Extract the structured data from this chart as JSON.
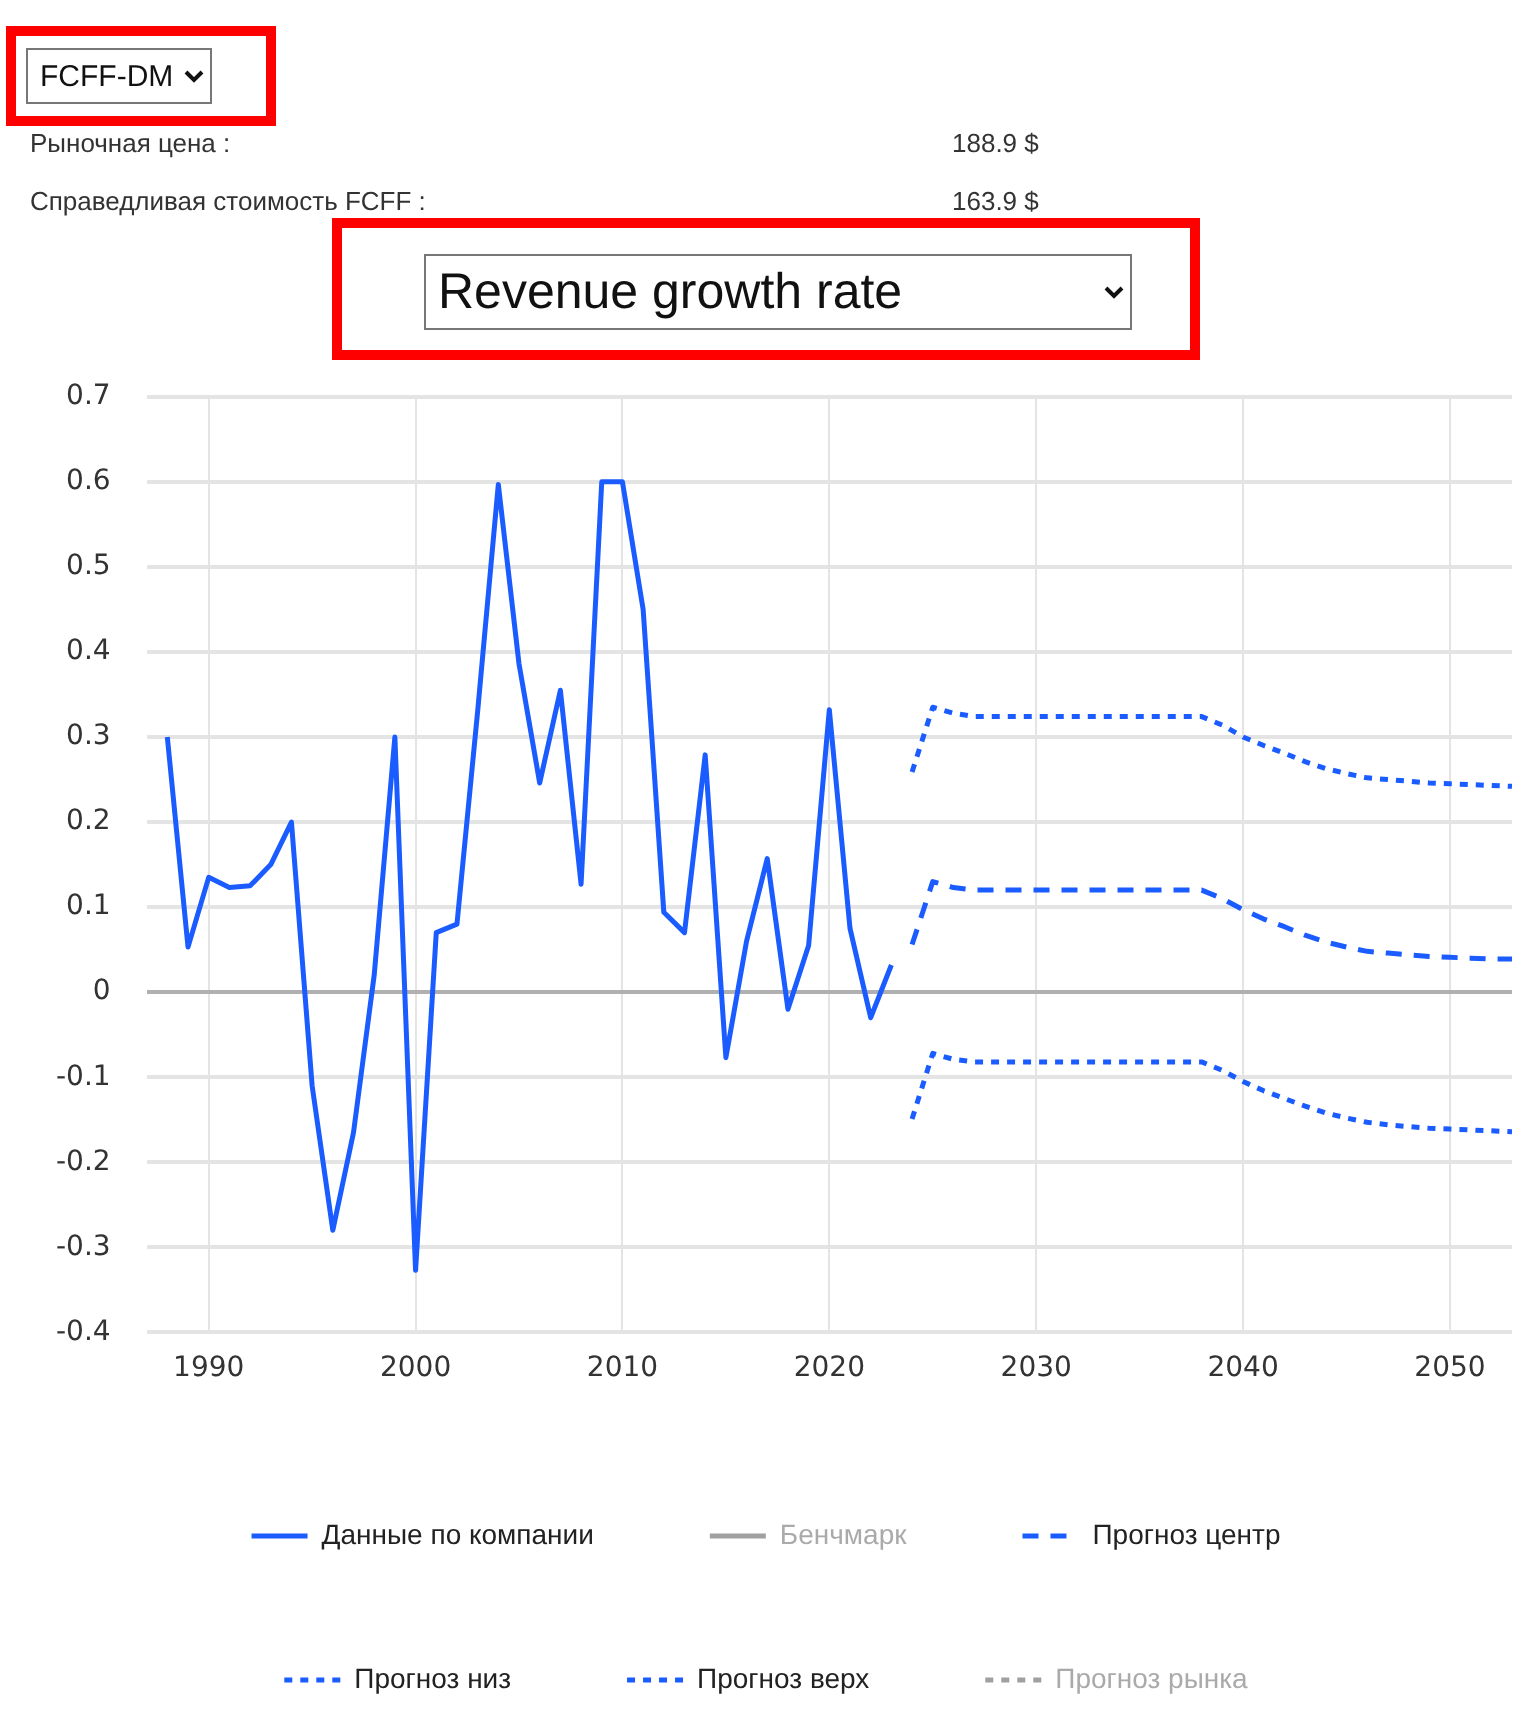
{
  "chart_data": {
    "type": "line",
    "title": "Revenue growth rate",
    "annotations": [
      "FCFF-DM",
      "Рыночная цена :",
      "188.9 $",
      "Справедливая стоимость FCFF :",
      "163.9 $"
    ],
    "xlim": [
      1987,
      2053
    ],
    "xticks": [
      1990,
      2000,
      2010,
      2020,
      2030,
      2040,
      2050
    ],
    "ylim": [
      -0.4,
      0.7
    ],
    "yticks": [
      -0.4,
      -0.3,
      -0.2,
      -0.1,
      0,
      0.1,
      0.2,
      0.3,
      0.4,
      0.5,
      0.6,
      0.7
    ],
    "grid": true,
    "legend": "bottom",
    "marker": "none",
    "series": [
      {
        "name": "Данные по компании",
        "color": "#1a5cff",
        "line_style": "solid",
        "x": [
          1988,
          1989,
          1990,
          1991,
          1992,
          1993,
          1994,
          1995,
          1996,
          1997,
          1998,
          1999,
          2000,
          2001,
          2002,
          2003,
          2004,
          2005,
          2006,
          2007,
          2008,
          2009,
          2010,
          2011,
          2012,
          2013,
          2014,
          2015,
          2016,
          2017,
          2018,
          2019,
          2020,
          2021,
          2022,
          2023
        ],
        "values": [
          0.3,
          0.053,
          0.135,
          0.123,
          0.125,
          0.15,
          0.2,
          -0.11,
          -0.28,
          -0.165,
          0.02,
          0.3,
          -0.327,
          0.07,
          0.08,
          0.33,
          0.597,
          0.386,
          0.246,
          0.355,
          0.127,
          0.6,
          0.6,
          0.45,
          0.094,
          0.07,
          0.279,
          -0.077,
          0.06,
          0.157,
          -0.02,
          0.055,
          0.332,
          0.075,
          -0.03,
          0.032
        ]
      },
      {
        "name": "Бенчмарк",
        "color": "#a0a0a0",
        "line_style": "solid"
      },
      {
        "name": "Прогноз центр",
        "color": "#1a5cff",
        "line_style": "dashed",
        "x": [
          2024,
          2025,
          2026,
          2027,
          2028,
          2029,
          2030,
          2031,
          2032,
          2033,
          2034,
          2035,
          2036,
          2037,
          2038,
          2039,
          2040,
          2041,
          2042,
          2043,
          2044,
          2045,
          2046,
          2047,
          2048,
          2049,
          2050,
          2051,
          2052,
          2053
        ],
        "values": [
          0.056,
          0.13,
          0.123,
          0.12,
          0.12,
          0.12,
          0.12,
          0.12,
          0.12,
          0.12,
          0.12,
          0.12,
          0.12,
          0.12,
          0.12,
          0.11,
          0.097,
          0.086,
          0.077,
          0.067,
          0.059,
          0.053,
          0.048,
          0.046,
          0.044,
          0.042,
          0.041,
          0.04,
          0.039,
          0.039
        ]
      },
      {
        "name": "Прогноз низ",
        "color": "#1a5cff",
        "line_style": "dotted",
        "x": [
          2024,
          2025,
          2026,
          2027,
          2028,
          2029,
          2030,
          2031,
          2032,
          2033,
          2034,
          2035,
          2036,
          2037,
          2038,
          2039,
          2040,
          2041,
          2042,
          2043,
          2044,
          2045,
          2046,
          2047,
          2048,
          2049,
          2050,
          2051,
          2052,
          2053
        ],
        "values": [
          -0.149,
          -0.072,
          -0.079,
          -0.082,
          -0.082,
          -0.082,
          -0.082,
          -0.082,
          -0.082,
          -0.082,
          -0.082,
          -0.082,
          -0.082,
          -0.082,
          -0.082,
          -0.092,
          -0.105,
          -0.116,
          -0.125,
          -0.134,
          -0.142,
          -0.148,
          -0.153,
          -0.156,
          -0.158,
          -0.16,
          -0.161,
          -0.162,
          -0.163,
          -0.164
        ]
      },
      {
        "name": "Прогноз верх",
        "color": "#1a5cff",
        "line_style": "dotted",
        "x": [
          2024,
          2025,
          2026,
          2027,
          2028,
          2029,
          2030,
          2031,
          2032,
          2033,
          2034,
          2035,
          2036,
          2037,
          2038,
          2039,
          2040,
          2041,
          2042,
          2043,
          2044,
          2045,
          2046,
          2047,
          2048,
          2049,
          2050,
          2051,
          2052,
          2053
        ],
        "values": [
          0.259,
          0.335,
          0.328,
          0.324,
          0.324,
          0.324,
          0.324,
          0.324,
          0.324,
          0.324,
          0.324,
          0.324,
          0.324,
          0.324,
          0.324,
          0.314,
          0.3,
          0.29,
          0.281,
          0.271,
          0.263,
          0.257,
          0.252,
          0.25,
          0.248,
          0.246,
          0.245,
          0.244,
          0.243,
          0.242
        ]
      },
      {
        "name": "Прогноз рынка",
        "color": "#a0a0a0",
        "line_style": "dotted"
      }
    ]
  }
}
